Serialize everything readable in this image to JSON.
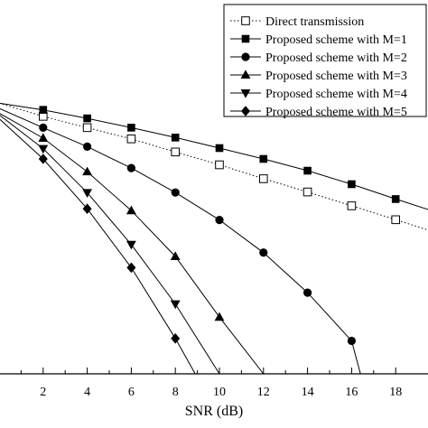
{
  "chart_data": {
    "type": "line",
    "xlabel": "SNR (dB)",
    "ylabel": "",
    "title": "",
    "x_ticks": [
      "2",
      "4",
      "6",
      "8",
      "10",
      "12",
      "14",
      "16",
      "18"
    ],
    "xlim": [
      0,
      19.6
    ],
    "y_scale": "log",
    "ylim": [
      1e-05,
      0.2
    ],
    "grid": false,
    "legend_position": "top-right",
    "series": [
      {
        "name": "Direct transmission",
        "marker": "open-square",
        "dash": "dotted",
        "x": [
          0,
          2,
          4,
          6,
          8,
          10,
          12,
          14,
          16,
          18,
          19.6
        ],
        "y": [
          0.12,
          0.0758,
          0.0512,
          0.0347,
          0.022,
          0.0141,
          0.0087,
          0.0055,
          0.0034,
          0.0021,
          0.00142
        ]
      },
      {
        "name": "Proposed scheme with M=1",
        "marker": "filled-square",
        "dash": "solid",
        "x": [
          0,
          2,
          4,
          6,
          8,
          10,
          12,
          14,
          16,
          18,
          19.6
        ],
        "y": [
          0.12,
          0.0949,
          0.0707,
          0.0512,
          0.0363,
          0.0252,
          0.0173,
          0.0115,
          0.0072,
          0.0043,
          0.0029
        ]
      },
      {
        "name": "Proposed scheme with M=2",
        "marker": "filled-circle",
        "dash": "solid",
        "x": [
          0,
          2,
          4,
          6,
          8,
          10,
          12,
          14,
          16,
          16.4
        ],
        "y": [
          0.1,
          0.0512,
          0.0265,
          0.0126,
          0.0054,
          0.00208,
          0.00067,
          0.000167,
          3.14e-05,
          1e-05
        ]
      },
      {
        "name": "Proposed scheme with M=3",
        "marker": "filled-triangle-up",
        "dash": "solid",
        "x": [
          0,
          2,
          4,
          6,
          8,
          10,
          12
        ],
        "y": [
          0.085,
          0.0356,
          0.0111,
          0.00288,
          0.000587,
          7.15e-05,
          1e-05
        ]
      },
      {
        "name": "Proposed scheme with M=4",
        "marker": "filled-triangle-down",
        "dash": "solid",
        "x": [
          0,
          2,
          4,
          6,
          8,
          10
        ],
        "y": [
          0.08,
          0.0247,
          0.00537,
          0.000889,
          0.000113,
          1e-05
        ]
      },
      {
        "name": "Proposed scheme with M=5",
        "marker": "filled-diamond",
        "dash": "solid",
        "x": [
          0,
          2,
          4,
          6,
          8,
          8.9
        ],
        "y": [
          0.07,
          0.0173,
          0.00307,
          0.000398,
          3.41e-05,
          1e-05
        ]
      }
    ]
  }
}
